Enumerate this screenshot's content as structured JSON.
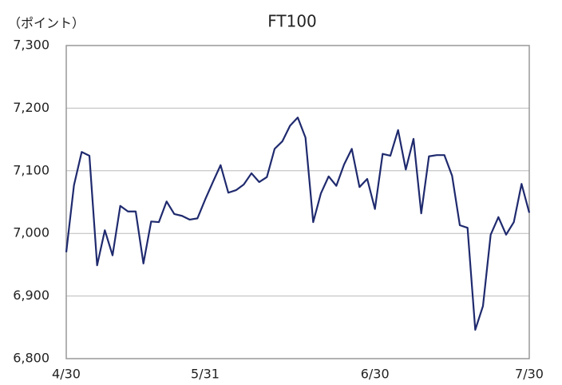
{
  "chart_data": {
    "type": "line",
    "title": "FT100",
    "y_label": "（ポイント）",
    "categories": [
      "4/30",
      null,
      null,
      null,
      null,
      null,
      null,
      null,
      null,
      null,
      null,
      null,
      null,
      null,
      null,
      null,
      null,
      null,
      "5/31",
      null,
      null,
      null,
      null,
      null,
      null,
      null,
      null,
      null,
      null,
      null,
      null,
      null,
      null,
      null,
      null,
      null,
      null,
      null,
      null,
      null,
      "6/30",
      null,
      null,
      null,
      null,
      null,
      null,
      null,
      null,
      null,
      null,
      null,
      null,
      null,
      null,
      null,
      null,
      null,
      null,
      null,
      "7/30"
    ],
    "series": [
      {
        "name": "FT100",
        "color": "#1f2a6e",
        "values": [
          6970,
          7077,
          7130,
          7124,
          6949,
          7005,
          6965,
          7044,
          7035,
          7035,
          6952,
          7019,
          7018,
          7051,
          7031,
          7028,
          7022,
          7024,
          7054,
          7082,
          7109,
          7065,
          7069,
          7078,
          7096,
          7082,
          7090,
          7135,
          7147,
          7172,
          7185,
          7153,
          7018,
          7064,
          7091,
          7076,
          7110,
          7135,
          7074,
          7087,
          7039,
          7127,
          7124,
          7165,
          7102,
          7151,
          7032,
          7123,
          7125,
          7125,
          7092,
          7013,
          7009,
          6846,
          6884,
          6998,
          7026,
          6998,
          7018,
          7079,
          7033
        ]
      }
    ],
    "ylim": [
      6800,
      7300
    ],
    "yticks": [
      {
        "value": 6800,
        "label": "6,800"
      },
      {
        "value": 6900,
        "label": "6,900"
      },
      {
        "value": 7000,
        "label": "7,000"
      },
      {
        "value": 7100,
        "label": "7,100"
      },
      {
        "value": 7200,
        "label": "7,200"
      },
      {
        "value": 7300,
        "label": "7,300"
      }
    ],
    "grid": true
  }
}
